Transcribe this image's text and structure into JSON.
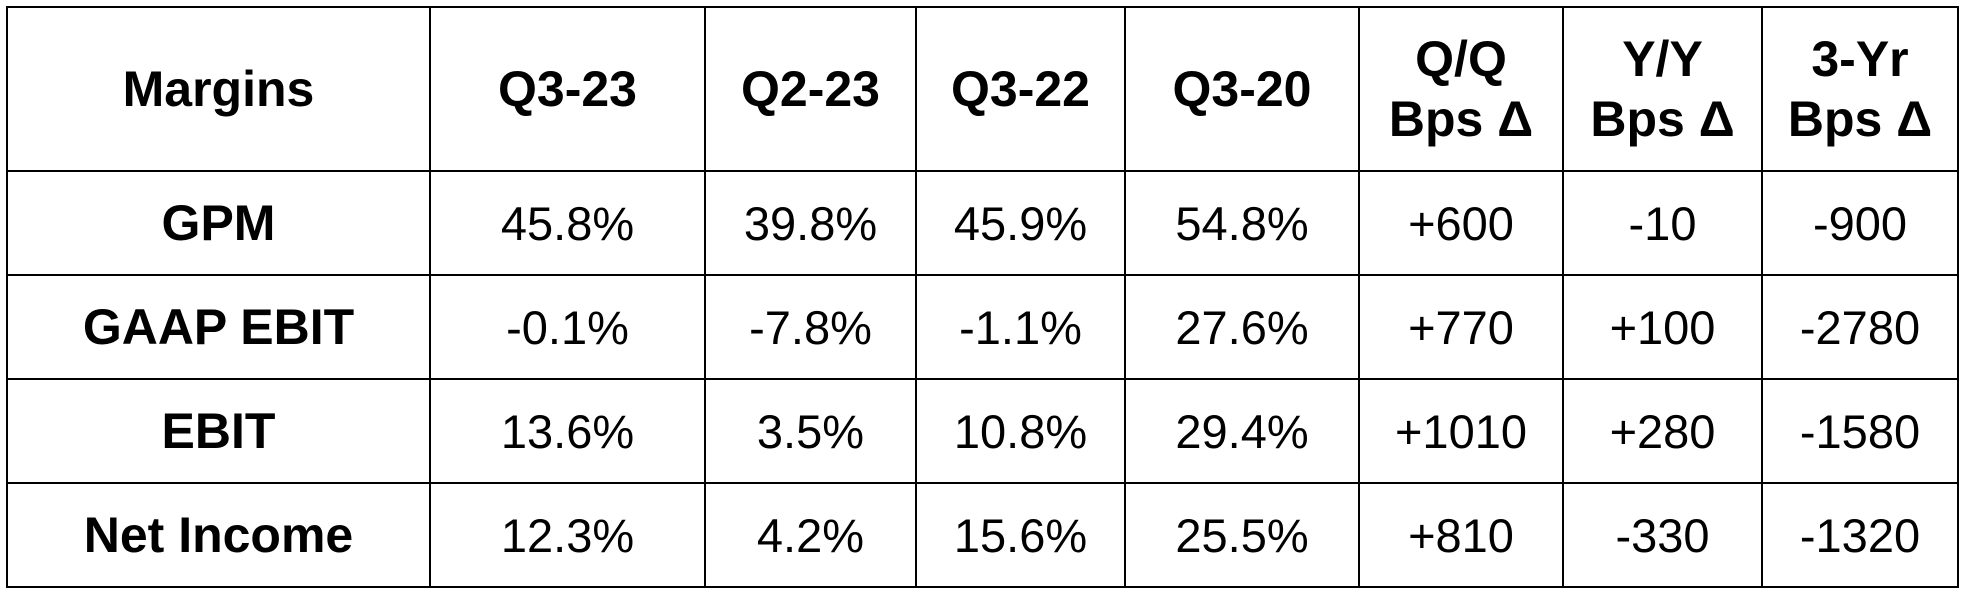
{
  "table": {
    "header": [
      "Margins",
      "Q3-23",
      "Q2-23",
      "Q3-22",
      "Q3-20",
      "Q/Q\nBps Δ",
      "Y/Y\nBps Δ",
      "3-Yr\nBps Δ"
    ],
    "rows": [
      [
        "GPM",
        "45.8%",
        "39.8%",
        "45.9%",
        "54.8%",
        "+600",
        "-10",
        "-900"
      ],
      [
        "GAAP EBIT",
        "-0.1%",
        "-7.8%",
        "-1.1%",
        "27.6%",
        "+770",
        "+100",
        "-2780"
      ],
      [
        "EBIT",
        "13.6%",
        "3.5%",
        "10.8%",
        "29.4%",
        "+1010",
        "+280",
        "-1580"
      ],
      [
        "Net Income",
        "12.3%",
        "4.2%",
        "15.6%",
        "25.5%",
        "+810",
        "-330",
        "-1320"
      ]
    ]
  }
}
